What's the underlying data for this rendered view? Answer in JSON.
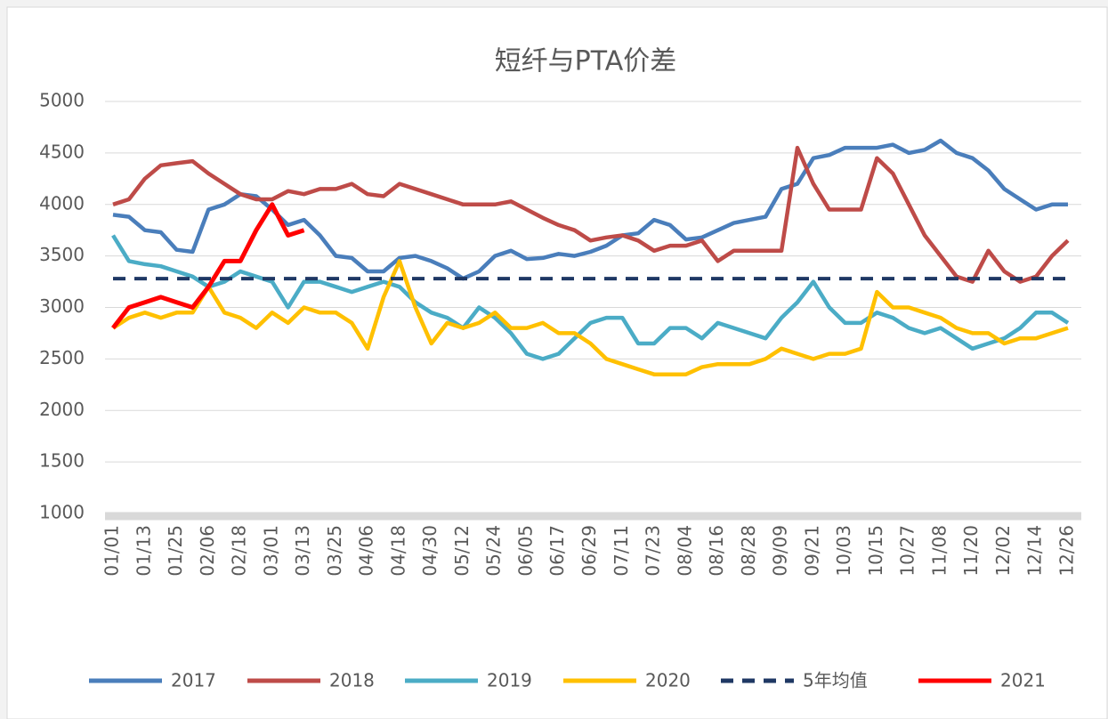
{
  "chart_data": {
    "type": "line",
    "title": "短纤与PTA价差",
    "categories": [
      "01/01",
      null,
      "01/13",
      null,
      "01/25",
      null,
      "02/06",
      null,
      "02/18",
      null,
      "03/01",
      null,
      "03/13",
      null,
      "03/25",
      null,
      "04/06",
      null,
      "04/18",
      null,
      "04/30",
      null,
      "05/12",
      null,
      "05/24",
      null,
      "06/05",
      null,
      "06/17",
      null,
      "06/29",
      null,
      "07/11",
      null,
      "07/23",
      null,
      "08/04",
      null,
      "08/16",
      null,
      "08/28",
      null,
      "09/09",
      null,
      "09/21",
      null,
      "10/03",
      null,
      "10/15",
      null,
      "10/27",
      null,
      "11/08",
      null,
      "11/20",
      null,
      "12/02",
      null,
      "12/14",
      null,
      "12/26"
    ],
    "ylim": [
      1000,
      5000
    ],
    "yticks": [
      1000,
      1500,
      2000,
      2500,
      3000,
      3500,
      4000,
      4500,
      5000
    ],
    "grid": true,
    "legend": "bottom",
    "series": [
      {
        "name": "2017",
        "color": "#4a7ebb",
        "values": [
          3900,
          3880,
          3750,
          3730,
          3560,
          3540,
          3950,
          4000,
          4100,
          4080,
          3950,
          3800,
          3850,
          3700,
          3500,
          3480,
          3350,
          3350,
          3480,
          3500,
          3450,
          3380,
          3280,
          3350,
          3500,
          3550,
          3470,
          3480,
          3520,
          3500,
          3540,
          3600,
          3700,
          3720,
          3850,
          3800,
          3660,
          3680,
          3750,
          3820,
          3850,
          3880,
          4150,
          4200,
          4450,
          4480,
          4550,
          4550,
          4550,
          4580,
          4500,
          4530,
          4620,
          4500,
          4450,
          4330,
          4150,
          4050,
          3950,
          4000,
          4000
        ]
      },
      {
        "name": "2018",
        "color": "#be4b48",
        "values": [
          4000,
          4050,
          4250,
          4380,
          4400,
          4420,
          4300,
          4200,
          4100,
          4050,
          4050,
          4130,
          4100,
          4150,
          4150,
          4200,
          4100,
          4080,
          4200,
          4150,
          4100,
          4050,
          4000,
          4000,
          4000,
          4030,
          3950,
          3870,
          3800,
          3750,
          3650,
          3680,
          3700,
          3650,
          3550,
          3600,
          3600,
          3650,
          3450,
          3550,
          3550,
          3550,
          3550,
          4550,
          4200,
          3950,
          3950,
          3950,
          4450,
          4300,
          4000,
          3700,
          3500,
          3300,
          3250,
          3550,
          3350,
          3250,
          3300,
          3500,
          3650
        ]
      },
      {
        "name": "2019",
        "color": "#4bacc6",
        "values": [
          3700,
          3450,
          3420,
          3400,
          3350,
          3300,
          3200,
          3250,
          3350,
          3300,
          3250,
          3000,
          3250,
          3250,
          3200,
          3150,
          3200,
          3250,
          3200,
          3050,
          2950,
          2900,
          2800,
          3000,
          2900,
          2750,
          2550,
          2500,
          2550,
          2700,
          2850,
          2900,
          2900,
          2650,
          2650,
          2800,
          2800,
          2700,
          2850,
          2800,
          2750,
          2700,
          2900,
          3050,
          3250,
          3000,
          2850,
          2850,
          2950,
          2900,
          2800,
          2750,
          2800,
          2700,
          2600,
          2650,
          2700,
          2800,
          2950,
          2950,
          2850
        ]
      },
      {
        "name": "2020",
        "color": "#ffc000",
        "values": [
          2800,
          2900,
          2950,
          2900,
          2950,
          2950,
          3200,
          2950,
          2900,
          2800,
          2950,
          2850,
          3000,
          2950,
          2950,
          2850,
          2600,
          3100,
          3450,
          3000,
          2650,
          2850,
          2800,
          2850,
          2950,
          2800,
          2800,
          2850,
          2750,
          2750,
          2650,
          2500,
          2450,
          2400,
          2350,
          2350,
          2350,
          2420,
          2450,
          2450,
          2450,
          2500,
          2600,
          2550,
          2500,
          2550,
          2550,
          2600,
          3150,
          3000,
          3000,
          2950,
          2900,
          2800,
          2750,
          2750,
          2650,
          2700,
          2700,
          2750,
          2800
        ]
      },
      {
        "name": "5年均值",
        "color": "#1f3864",
        "dashed": true,
        "values": [
          3280,
          3280,
          3280,
          3280,
          3280,
          3280,
          3280,
          3280,
          3280,
          3280,
          3280,
          3280,
          3280,
          3280,
          3280,
          3280,
          3280,
          3280,
          3280,
          3280,
          3280,
          3280,
          3280,
          3280,
          3280,
          3280,
          3280,
          3280,
          3280,
          3280,
          3280,
          3280,
          3280,
          3280,
          3280,
          3280,
          3280,
          3280,
          3280,
          3280,
          3280,
          3280,
          3280,
          3280,
          3280,
          3280,
          3280,
          3280,
          3280,
          3280,
          3280,
          3280,
          3280,
          3280,
          3280,
          3280,
          3280,
          3280,
          3280,
          3280,
          3280
        ]
      },
      {
        "name": "2021",
        "color": "#ff0000",
        "values": [
          2800,
          3000,
          3050,
          3100,
          3050,
          3000,
          3200,
          3450,
          3450,
          3750,
          4000,
          3700,
          3750,
          null,
          null,
          null,
          null,
          null,
          null,
          null,
          null,
          null,
          null,
          null,
          null,
          null,
          null,
          null,
          null,
          null,
          null,
          null,
          null,
          null,
          null,
          null,
          null,
          null,
          null,
          null,
          null,
          null,
          null,
          null,
          null,
          null,
          null,
          null,
          null,
          null,
          null,
          null,
          null,
          null,
          null,
          null,
          null,
          null,
          null,
          null,
          null
        ]
      }
    ]
  }
}
